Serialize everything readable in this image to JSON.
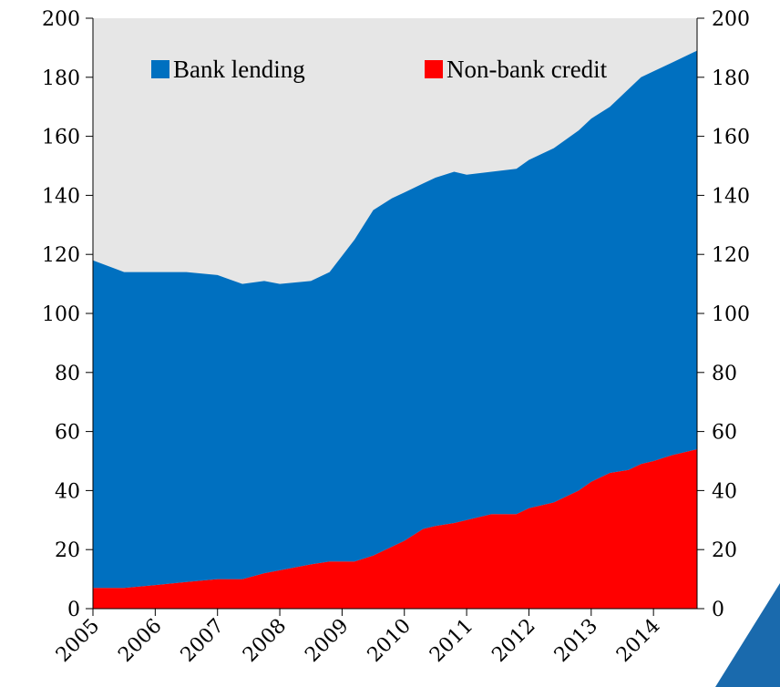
{
  "chart_data": {
    "type": "area",
    "stacked": true,
    "x_labels": [
      "2005",
      "2006",
      "2007",
      "2008",
      "2009",
      "2010",
      "2011",
      "2012",
      "2013",
      "2014"
    ],
    "y_ticks": [
      "0",
      "20",
      "40",
      "60",
      "80",
      "100",
      "120",
      "140",
      "160",
      "180",
      "200"
    ],
    "ylim": [
      0,
      200
    ],
    "xlim": [
      2005.0,
      2014.7
    ],
    "grid": false,
    "legend_position": "top",
    "series": [
      {
        "name": "Non-bank credit",
        "color": "#ff0000",
        "points": [
          [
            2005.0,
            7
          ],
          [
            2005.5,
            7
          ],
          [
            2006.0,
            8
          ],
          [
            2006.5,
            9
          ],
          [
            2007.0,
            10
          ],
          [
            2007.4,
            10
          ],
          [
            2007.75,
            12
          ],
          [
            2008.0,
            13
          ],
          [
            2008.5,
            15
          ],
          [
            2008.8,
            16
          ],
          [
            2009.2,
            16
          ],
          [
            2009.5,
            18
          ],
          [
            2009.8,
            21
          ],
          [
            2010.0,
            23
          ],
          [
            2010.3,
            27
          ],
          [
            2010.5,
            28
          ],
          [
            2010.8,
            29
          ],
          [
            2011.0,
            30
          ],
          [
            2011.4,
            32
          ],
          [
            2011.8,
            32
          ],
          [
            2012.0,
            34
          ],
          [
            2012.4,
            36
          ],
          [
            2012.8,
            40
          ],
          [
            2013.0,
            43
          ],
          [
            2013.3,
            46
          ],
          [
            2013.6,
            47
          ],
          [
            2013.8,
            49
          ],
          [
            2014.0,
            50
          ],
          [
            2014.3,
            52
          ],
          [
            2014.7,
            54
          ]
        ]
      },
      {
        "name": "Bank lending",
        "color": "#0070c0",
        "points": [
          [
            2005.0,
            111
          ],
          [
            2005.5,
            107
          ],
          [
            2006.0,
            106
          ],
          [
            2006.5,
            105
          ],
          [
            2007.0,
            103
          ],
          [
            2007.4,
            100
          ],
          [
            2007.75,
            99
          ],
          [
            2008.0,
            97
          ],
          [
            2008.5,
            96
          ],
          [
            2008.8,
            98
          ],
          [
            2009.2,
            109
          ],
          [
            2009.5,
            117
          ],
          [
            2009.8,
            118
          ],
          [
            2010.0,
            118
          ],
          [
            2010.3,
            117
          ],
          [
            2010.5,
            118
          ],
          [
            2010.8,
            119
          ],
          [
            2011.0,
            117
          ],
          [
            2011.4,
            116
          ],
          [
            2011.8,
            117
          ],
          [
            2012.0,
            118
          ],
          [
            2012.4,
            120
          ],
          [
            2012.8,
            122
          ],
          [
            2013.0,
            123
          ],
          [
            2013.3,
            124
          ],
          [
            2013.6,
            129
          ],
          [
            2013.8,
            131
          ],
          [
            2014.0,
            132
          ],
          [
            2014.3,
            133
          ],
          [
            2014.7,
            135
          ]
        ]
      }
    ]
  },
  "colors": {
    "plot_background": "#e6e6e6",
    "corner_accent": "#0070c0"
  }
}
